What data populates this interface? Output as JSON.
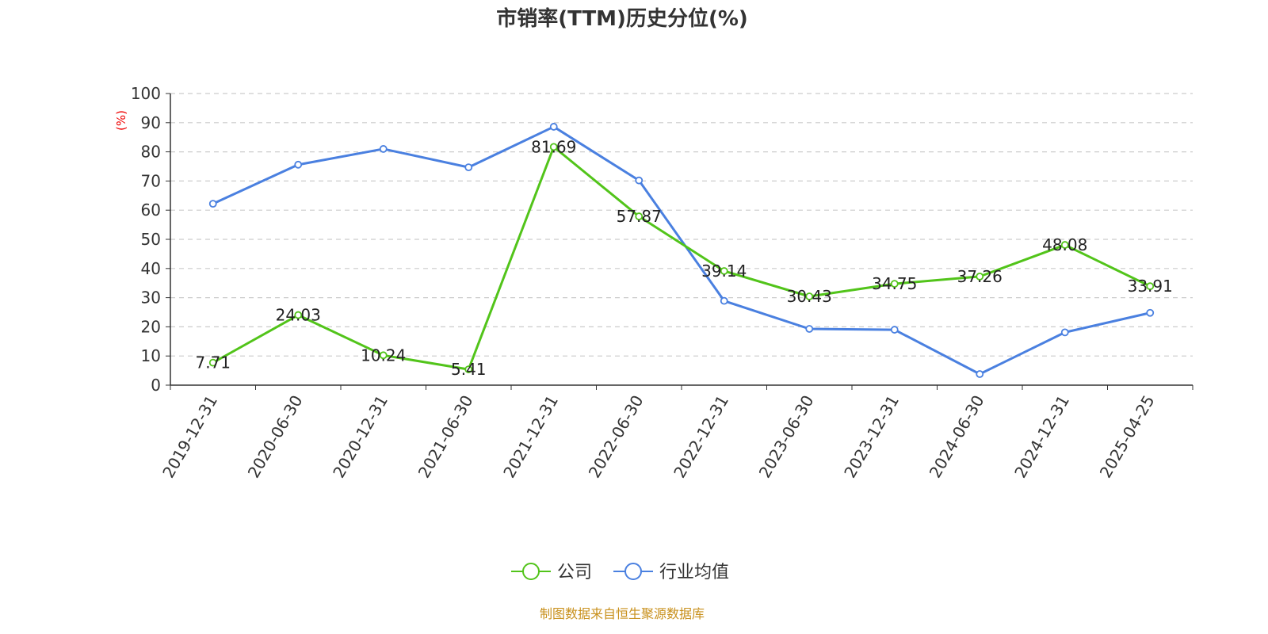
{
  "chart_data": {
    "type": "line",
    "title": "市销率(TTM)历史分位(%)",
    "ylabel": "(%)",
    "xlabel": "",
    "ylim": [
      0,
      100
    ],
    "yticks": [
      0,
      10,
      20,
      30,
      40,
      50,
      60,
      70,
      80,
      90,
      100
    ],
    "grid": true,
    "legend_position": "bottom",
    "categories": [
      "2019-12-31",
      "2020-06-30",
      "2020-12-31",
      "2021-06-30",
      "2021-12-31",
      "2022-06-30",
      "2022-12-31",
      "2023-06-30",
      "2023-12-31",
      "2024-06-30",
      "2024-12-31",
      "2025-04-25"
    ],
    "series": [
      {
        "name": "公司",
        "color": "#52c41a",
        "show_labels": true,
        "values": [
          7.71,
          24.03,
          10.24,
          5.41,
          81.69,
          57.87,
          39.14,
          30.43,
          34.75,
          37.26,
          48.08,
          33.91
        ]
      },
      {
        "name": "行业均值",
        "color": "#4a80e0",
        "show_labels": false,
        "values": [
          62.2,
          75.6,
          81.0,
          74.7,
          88.6,
          70.2,
          28.9,
          19.3,
          19.0,
          3.8,
          18.1,
          24.8
        ]
      }
    ],
    "source": "制图数据来自恒生聚源数据库"
  }
}
